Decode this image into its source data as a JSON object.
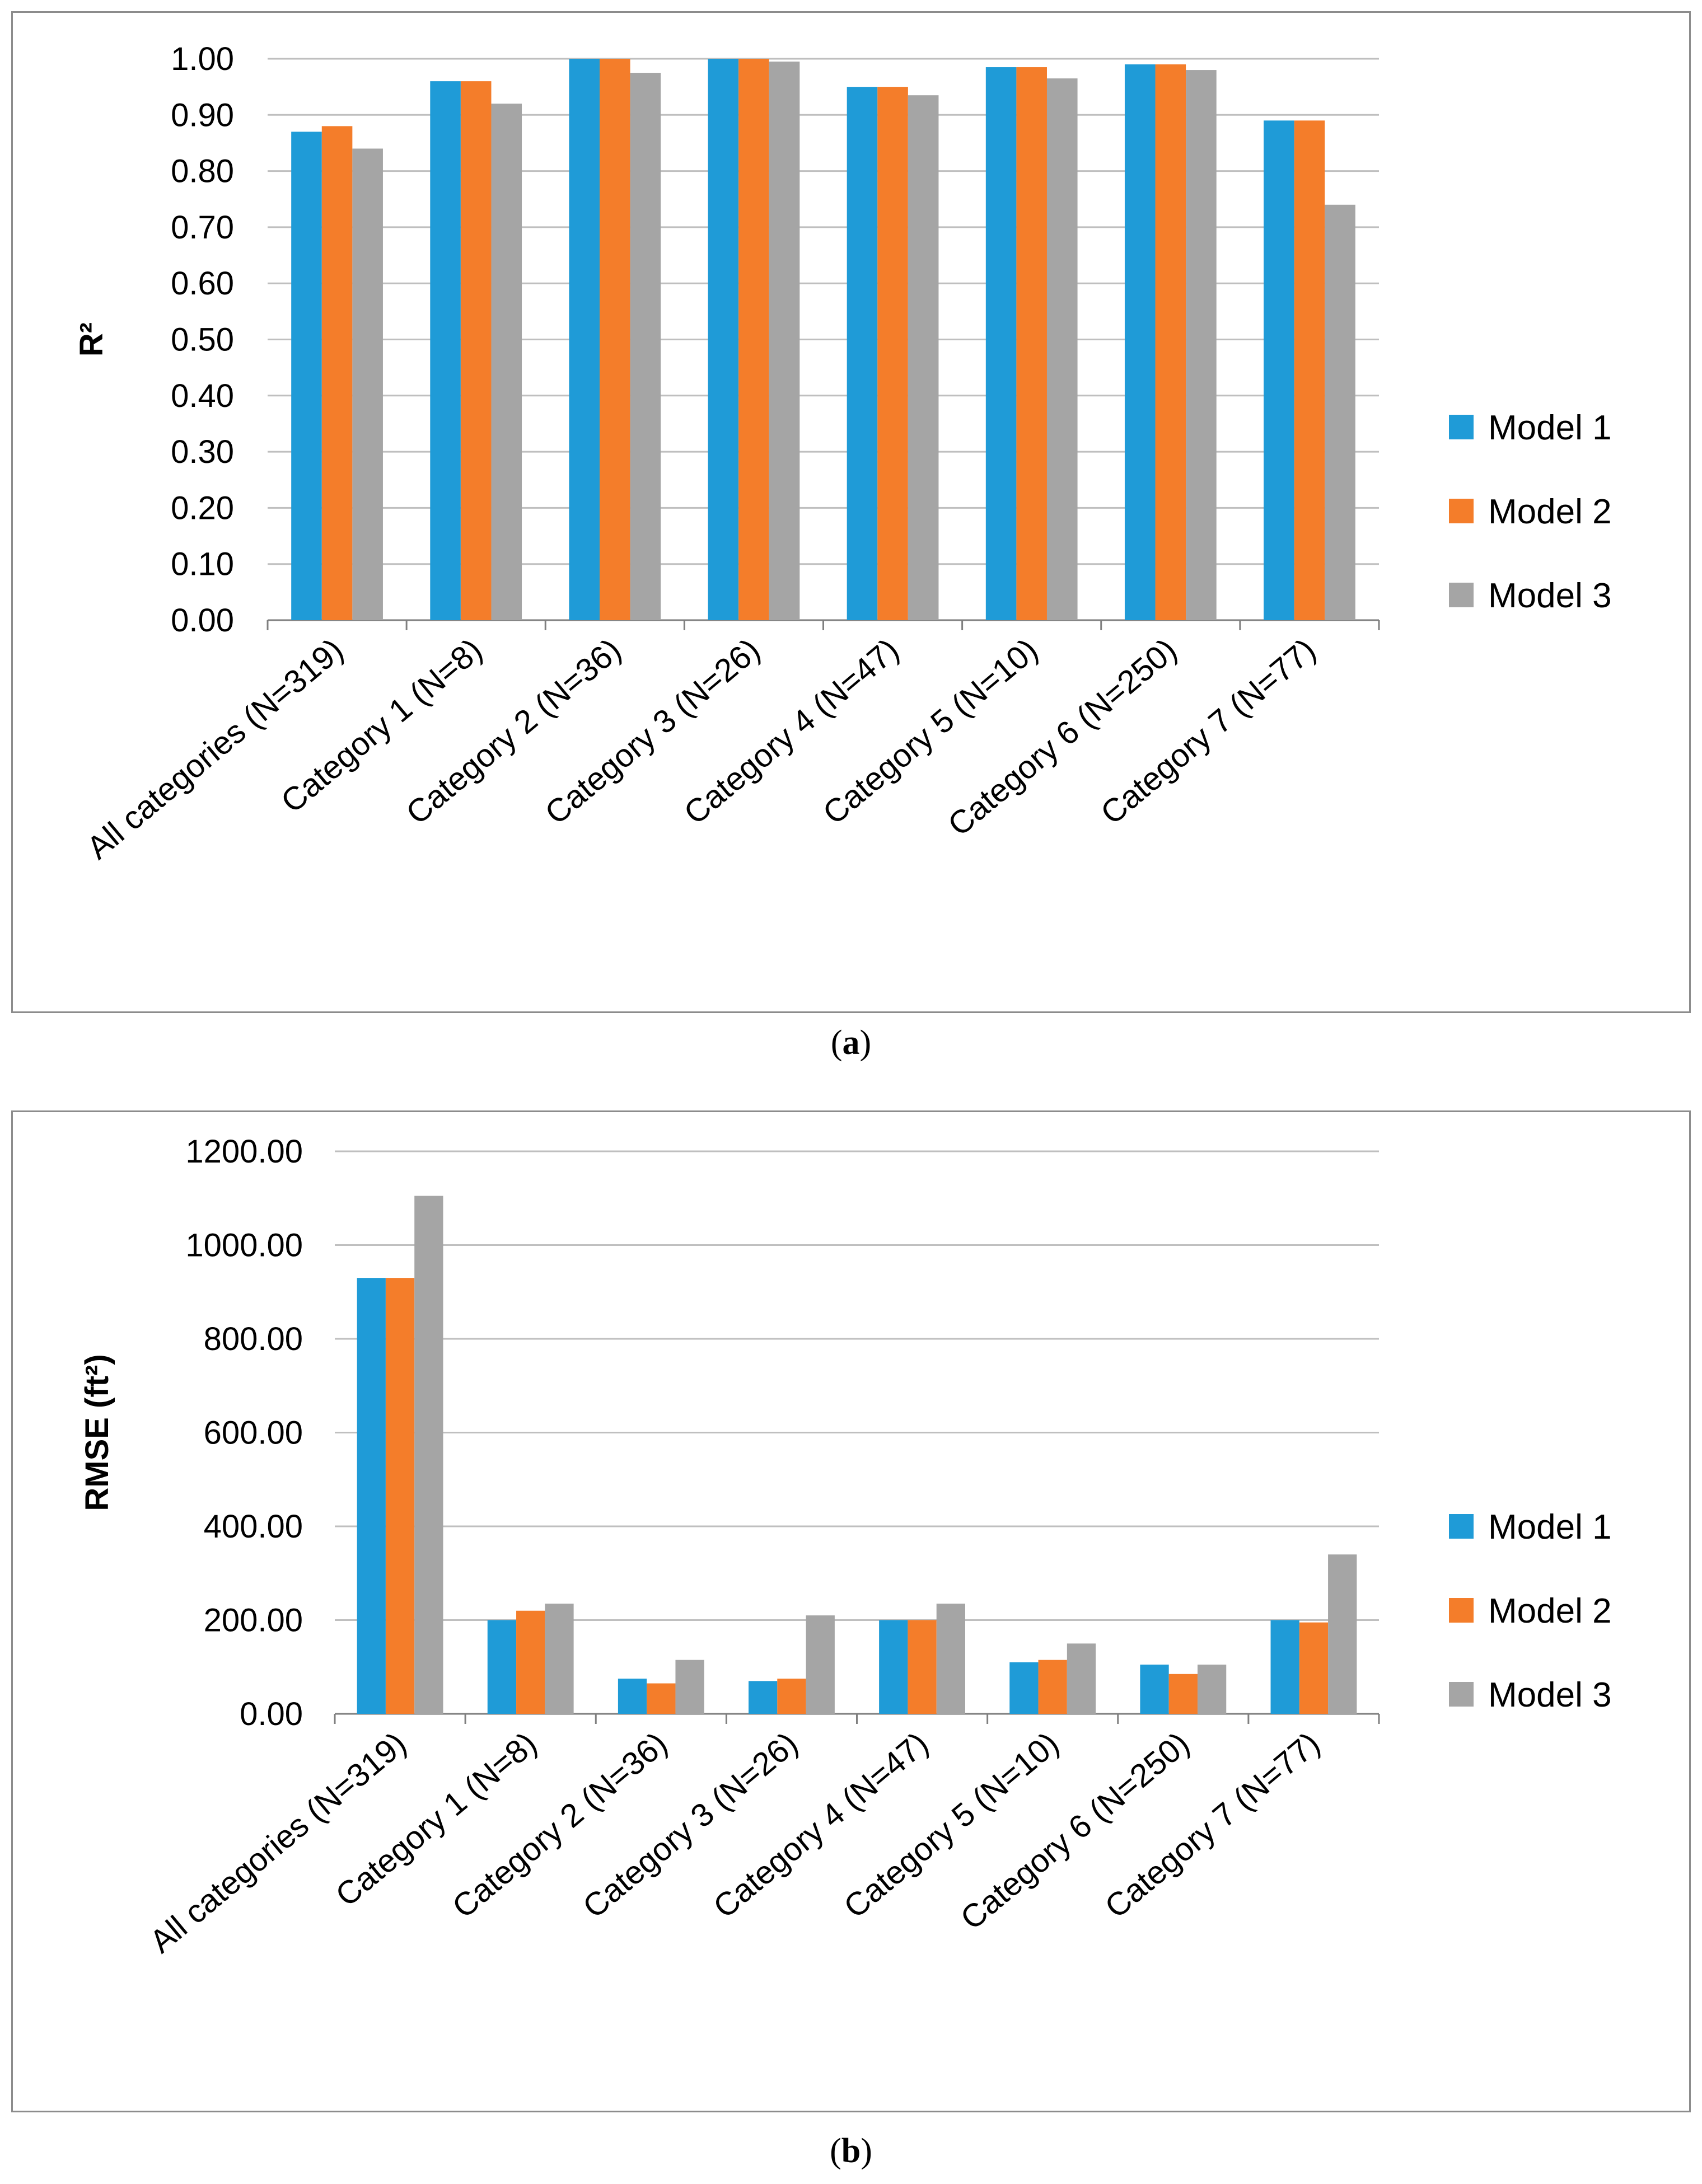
{
  "colors": {
    "model1": "#1f9bd7",
    "model2": "#f47d2a",
    "model3": "#a5a5a5",
    "grid": "#bfbfbf",
    "axis": "#7f7f7f",
    "text": "#000000"
  },
  "captions": {
    "a_open": "(",
    "a_letter": "a",
    "a_close": ")",
    "b_open": "(",
    "b_letter": "b",
    "b_close": ")"
  },
  "chart_data": [
    {
      "type": "bar",
      "title": "",
      "xlabel": "",
      "ylabel": "R²",
      "ylim": [
        0,
        1
      ],
      "yticks": [
        "0.00",
        "0.10",
        "0.20",
        "0.30",
        "0.40",
        "0.50",
        "0.60",
        "0.70",
        "0.80",
        "0.90",
        "1.00"
      ],
      "ytick_values": [
        0,
        0.1,
        0.2,
        0.3,
        0.4,
        0.5,
        0.6,
        0.7,
        0.8,
        0.9,
        1.0
      ],
      "categories": [
        "All categories (N=319)",
        "Category 1 (N=8)",
        "Category 2 (N=36)",
        "Category 3 (N=26)",
        "Category 4 (N=47)",
        "Category 5 (N=10)",
        "Category 6 (N=250)",
        "Category 7 (N=77)"
      ],
      "series": [
        {
          "name": "Model 1",
          "values": [
            0.87,
            0.96,
            1.0,
            1.0,
            0.95,
            0.985,
            0.99,
            0.89
          ]
        },
        {
          "name": "Model 2",
          "values": [
            0.88,
            0.96,
            1.0,
            1.0,
            0.95,
            0.985,
            0.99,
            0.89
          ]
        },
        {
          "name": "Model 3",
          "values": [
            0.84,
            0.92,
            0.975,
            0.995,
            0.935,
            0.965,
            0.98,
            0.74
          ]
        }
      ],
      "legend": "right"
    },
    {
      "type": "bar",
      "title": "",
      "xlabel": "",
      "ylabel": "RMSE (ft²)",
      "ylim": [
        0,
        1200
      ],
      "yticks": [
        "0.00",
        "200.00",
        "400.00",
        "600.00",
        "800.00",
        "1000.00",
        "1200.00"
      ],
      "ytick_values": [
        0,
        200,
        400,
        600,
        800,
        1000,
        1200
      ],
      "categories": [
        "All categories (N=319)",
        "Category 1 (N=8)",
        "Category 2 (N=36)",
        "Category 3 (N=26)",
        "Category 4 (N=47)",
        "Category 5 (N=10)",
        "Category 6 (N=250)",
        "Category 7 (N=77)"
      ],
      "series": [
        {
          "name": "Model 1",
          "values": [
            930,
            200,
            75,
            70,
            200,
            110,
            105,
            200
          ]
        },
        {
          "name": "Model 2",
          "values": [
            930,
            220,
            65,
            75,
            200,
            115,
            85,
            195
          ]
        },
        {
          "name": "Model 3",
          "values": [
            1105,
            235,
            115,
            210,
            235,
            150,
            105,
            340
          ]
        }
      ],
      "legend": "right"
    }
  ]
}
